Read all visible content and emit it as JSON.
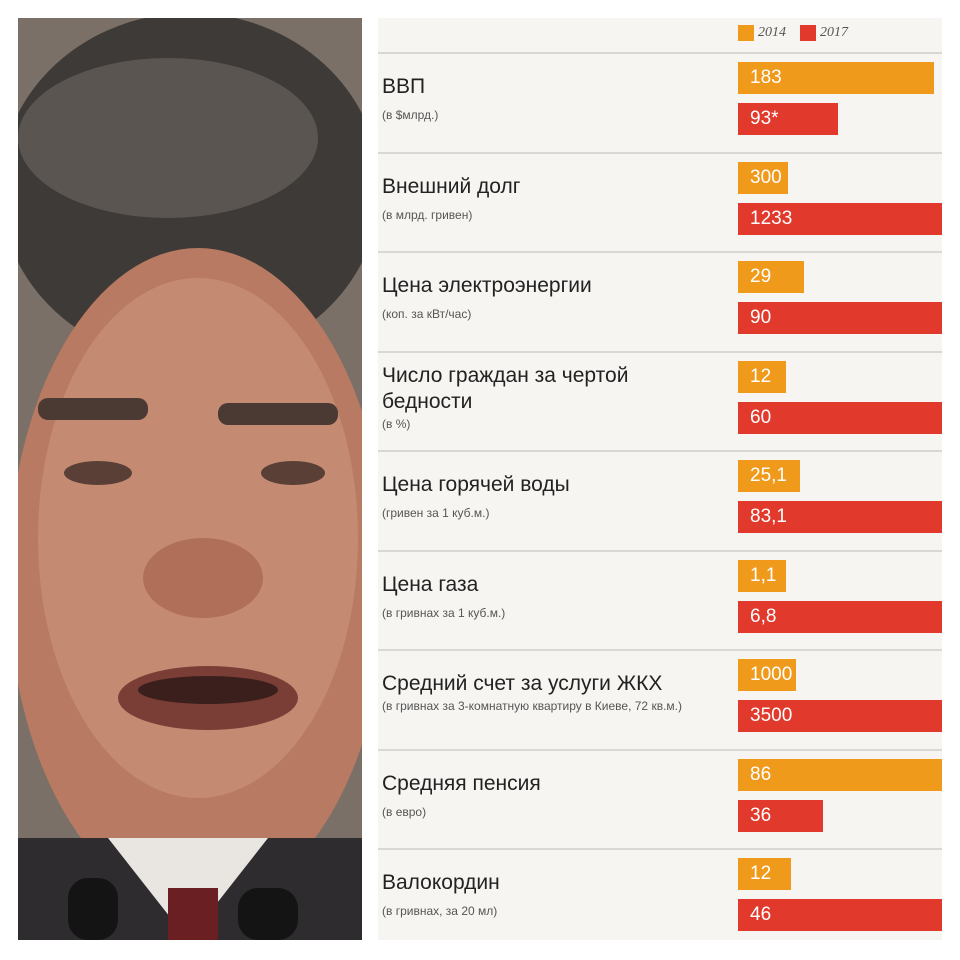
{
  "photo": {
    "icon": "portrait-photo"
  },
  "chart_data": {
    "type": "bar",
    "orientation": "horizontal",
    "legend": [
      {
        "label": "2014",
        "color": "#f09a1c"
      },
      {
        "label": "2017",
        "color": "#e13a2c"
      }
    ],
    "rows": [
      {
        "label": "ВВП",
        "sub": "(в $млрд.)",
        "v2014": 183,
        "v2017": 93,
        "t2014": "183",
        "t2017": "93*",
        "scale": 190
      },
      {
        "label": "Внешний долг",
        "sub": "(в млрд. гривен)",
        "v2014": 300,
        "v2017": 1233,
        "t2014": "300",
        "t2017": "1233",
        "scale": 1233
      },
      {
        "label": "Цена электроэнергии",
        "sub": "(коп. за кВт/час)",
        "v2014": 29,
        "v2017": 90,
        "t2014": "29",
        "t2017": "90",
        "scale": 90
      },
      {
        "label": "Число граждан за чертой бедности",
        "sub": "(в %)",
        "v2014": 12,
        "v2017": 60,
        "t2014": "12",
        "t2017": "60",
        "scale": 60
      },
      {
        "label": "Цена горячей воды",
        "sub": "(гривен за 1 куб.м.)",
        "v2014": 25.1,
        "v2017": 83.1,
        "t2014": "25,1",
        "t2017": "83,1",
        "scale": 83.1
      },
      {
        "label": "Цена газа",
        "sub": "(в гривнах за 1 куб.м.)",
        "v2014": 1.1,
        "v2017": 6.8,
        "t2014": "1,1",
        "t2017": "6,8",
        "scale": 6.8
      },
      {
        "label": "Средний счет за услуги ЖКХ",
        "sub": "(в гривнах за 3-комнатную квартиру в Киеве, 72 кв.м.)",
        "v2014": 1000,
        "v2017": 3500,
        "t2014": "1000",
        "t2017": "3500",
        "scale": 3500
      },
      {
        "label": "Средняя пенсия",
        "sub": "(в евро)",
        "v2014": 86,
        "v2017": 36,
        "t2014": "86",
        "t2017": "36",
        "scale": 86
      },
      {
        "label": "Валокордин",
        "sub": "(в гривнах, за 20 мл)",
        "v2014": 12,
        "v2017": 46,
        "t2014": "12",
        "t2017": "46",
        "scale": 46
      }
    ]
  }
}
